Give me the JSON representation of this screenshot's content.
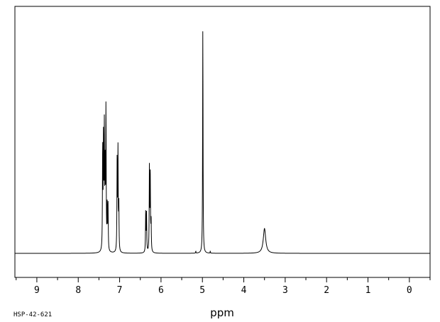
{
  "chart_data": {
    "type": "line",
    "title": "",
    "xlabel": "ppm",
    "ylabel": "",
    "xlim": [
      9.53,
      -0.5
    ],
    "ylim": [
      0,
      100
    ],
    "x_reversed": true,
    "grid": false,
    "x_ticks": [
      9,
      8,
      7,
      6,
      5,
      4,
      3,
      2,
      1,
      0
    ],
    "x_tick_labels": [
      "9",
      "8",
      "7",
      "6",
      "5",
      "4",
      "3",
      "2",
      "1",
      "0"
    ],
    "peaks": [
      {
        "ppm": 7.41,
        "intensity": 46
      },
      {
        "ppm": 7.39,
        "intensity": 48
      },
      {
        "ppm": 7.37,
        "intensity": 52
      },
      {
        "ppm": 7.35,
        "intensity": 37
      },
      {
        "ppm": 7.33,
        "intensity": 63
      },
      {
        "ppm": 7.3,
        "intensity": 19
      },
      {
        "ppm": 7.28,
        "intensity": 20
      },
      {
        "ppm": 7.06,
        "intensity": 41
      },
      {
        "ppm": 7.04,
        "intensity": 44
      },
      {
        "ppm": 7.02,
        "intensity": 22
      },
      {
        "ppm": 6.37,
        "intensity": 18
      },
      {
        "ppm": 6.35,
        "intensity": 17
      },
      {
        "ppm": 6.28,
        "intensity": 38
      },
      {
        "ppm": 6.26,
        "intensity": 33
      },
      {
        "ppm": 6.24,
        "intensity": 14
      },
      {
        "ppm": 4.99,
        "intensity": 100
      },
      {
        "ppm": 3.5,
        "intensity": 11
      }
    ],
    "minor_marks": [
      {
        "ppm": 5.16,
        "intensity": 1
      },
      {
        "ppm": 4.81,
        "intensity": 1
      }
    ]
  },
  "footer": {
    "sample_id": "HSP-42-621"
  }
}
